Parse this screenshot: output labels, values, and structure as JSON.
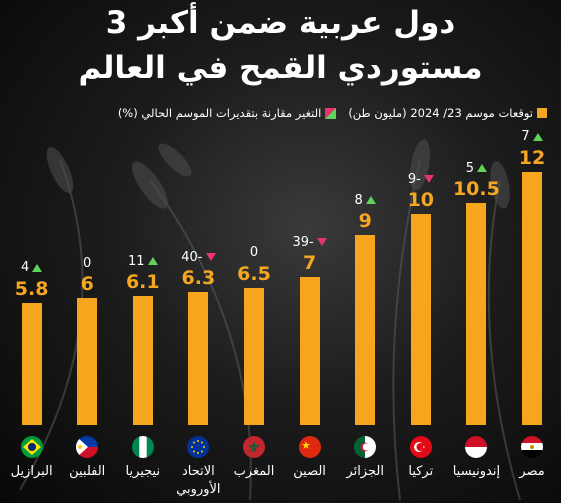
{
  "title_line1": "3 دول عربية ضمن أكبر",
  "title_line2": "مستوردي القمح في العالم",
  "legend": {
    "import_label": "توقعات موسم 23/ 2024 (مليون طن)",
    "change_label": "التغير مقارنة بتقديرات الموسم الحالي (%)",
    "import_color": "#f5a623",
    "up_color": "#5fd35a",
    "down_color": "#e8336b"
  },
  "chart_data": {
    "type": "bar",
    "categories": [
      "مصر",
      "إندونيسيا",
      "تركيا",
      "الجزائر",
      "الصين",
      "المغرب",
      "الاتحاد الأوروبي",
      "نيجيريا",
      "الفلبين",
      "البرازيل"
    ],
    "category_lines": [
      [
        "مصر"
      ],
      [
        "إندونيسيا"
      ],
      [
        "تركيا"
      ],
      [
        "الجزائر"
      ],
      [
        "الصين"
      ],
      [
        "المغرب"
      ],
      [
        "الاتحاد",
        "الأوروبي"
      ],
      [
        "نيجيريا"
      ],
      [
        "الفلبين"
      ],
      [
        "البرازيل"
      ]
    ],
    "values": [
      12,
      10.5,
      10,
      9,
      7,
      6.5,
      6.3,
      6.1,
      6,
      5.8
    ],
    "value_labels": [
      "12",
      "10.5",
      "10",
      "9",
      "7",
      "6.5",
      "6.3",
      "6.1",
      "6",
      "5.8"
    ],
    "changes": [
      7,
      5,
      -9,
      8,
      -39,
      0,
      -40,
      11,
      0,
      4
    ],
    "change_labels": [
      "7",
      "5",
      "9-",
      "8",
      "39-",
      "0",
      "40-",
      "11",
      "0",
      "4"
    ],
    "change_dirs": [
      "up",
      "up",
      "down",
      "up",
      "down",
      "none",
      "down",
      "up",
      "none",
      "up"
    ],
    "flags": [
      "egypt-flag",
      "indonesia-flag",
      "turkey-flag",
      "algeria-flag",
      "china-flag",
      "morocco-flag",
      "eu-flag",
      "nigeria-flag",
      "philippines-flag",
      "brazil-flag"
    ],
    "ylim": [
      0,
      12
    ]
  }
}
